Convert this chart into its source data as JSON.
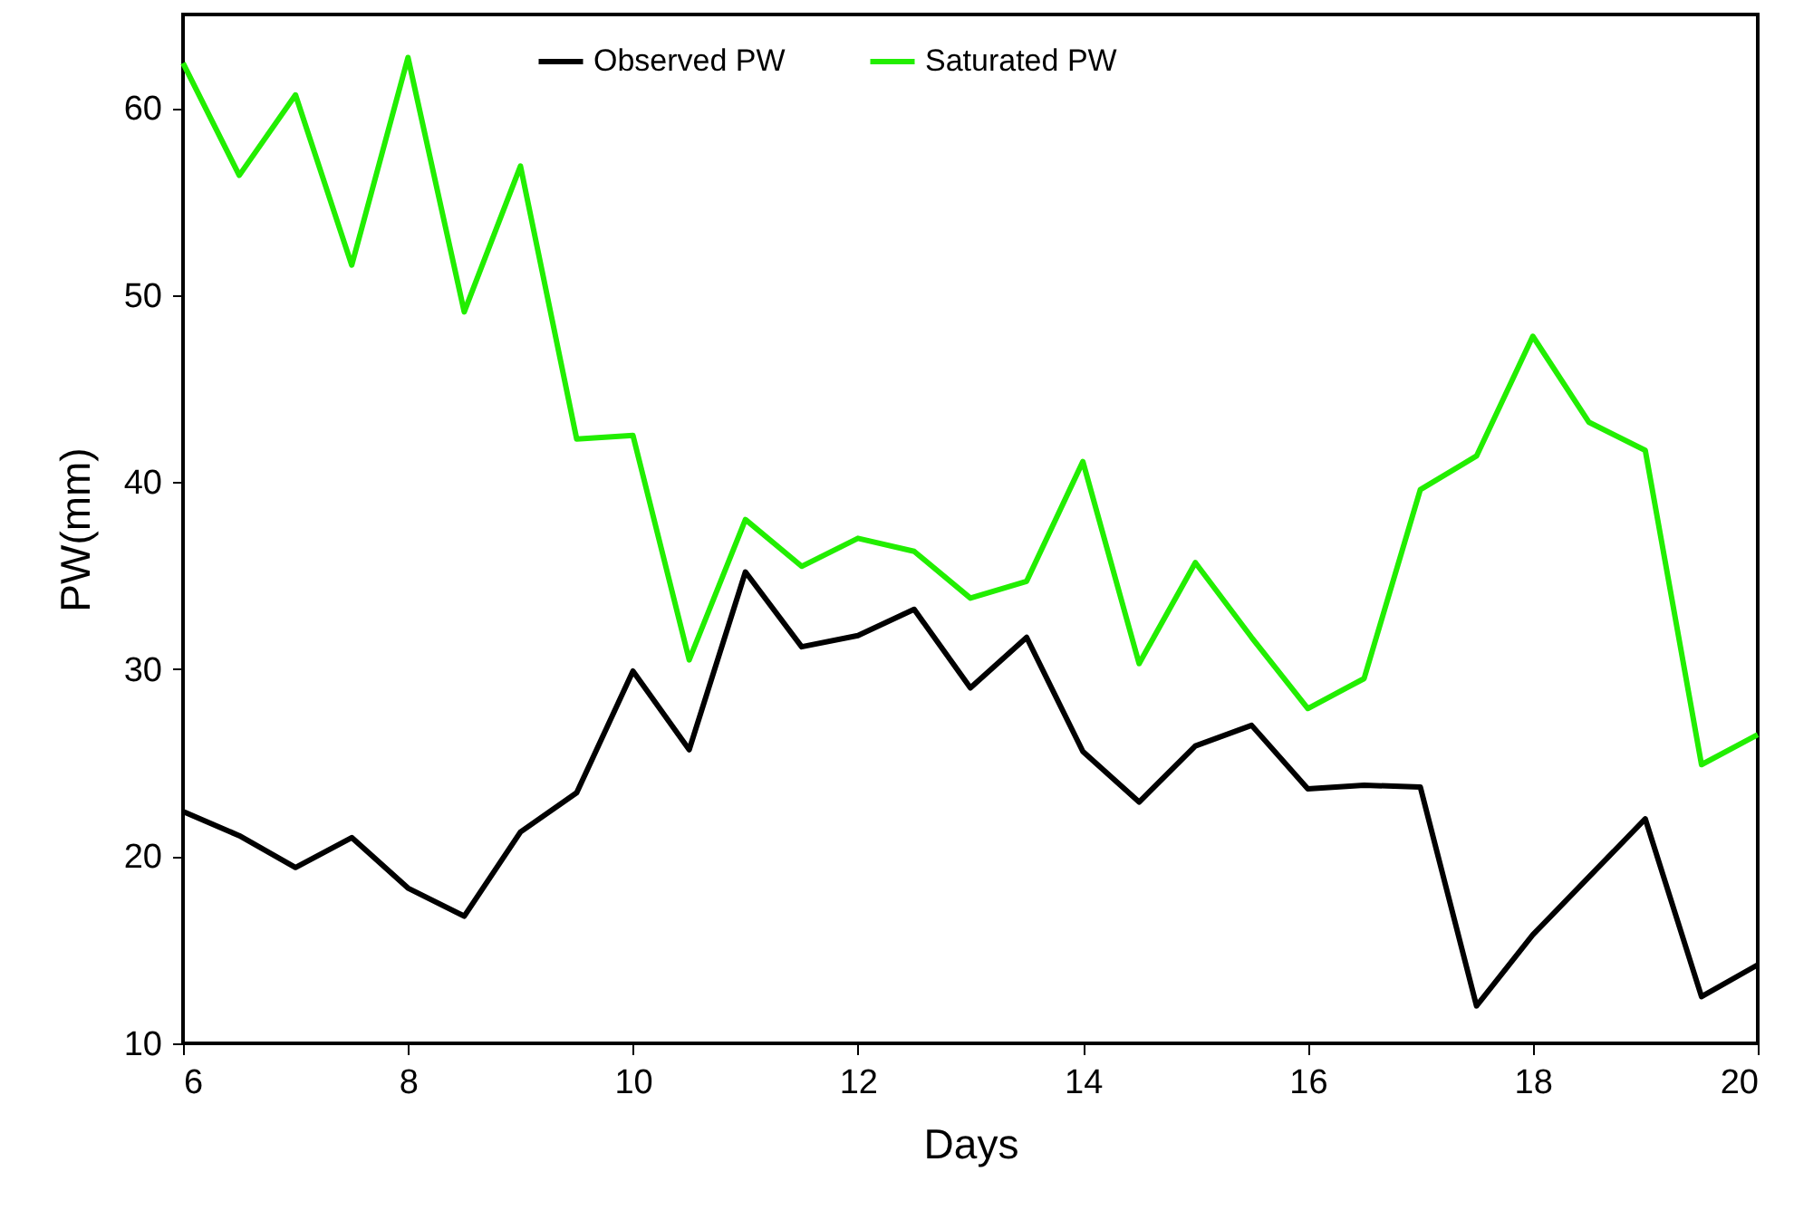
{
  "chart_data": {
    "type": "line",
    "xlabel": "Days",
    "ylabel": "PW(mm)",
    "x": [
      6,
      6.5,
      7,
      7.5,
      8,
      8.5,
      9,
      9.5,
      10,
      10.5,
      11,
      11.5,
      12,
      12.5,
      13,
      13.5,
      14,
      14.5,
      15,
      15.5,
      16,
      16.5,
      17,
      17.5,
      18,
      18.5,
      19,
      19.5,
      20
    ],
    "series": [
      {
        "name": "Observed PW",
        "color": "#000000",
        "values": [
          22.4,
          21.1,
          19.4,
          21.0,
          18.3,
          16.8,
          21.3,
          23.4,
          29.9,
          25.7,
          35.2,
          31.2,
          31.8,
          33.2,
          29.0,
          31.7,
          25.6,
          22.9,
          25.9,
          27.0,
          23.6,
          23.8,
          23.7,
          12.0,
          15.8,
          18.9,
          22.0,
          12.5,
          14.2
        ]
      },
      {
        "name": "Saturated PW",
        "color": "#22ee00",
        "values": [
          62.4,
          56.4,
          60.7,
          51.6,
          62.7,
          49.1,
          56.9,
          42.3,
          42.5,
          30.5,
          38.0,
          35.5,
          37.0,
          36.3,
          33.8,
          34.7,
          41.1,
          30.3,
          35.7,
          31.7,
          27.9,
          29.5,
          39.6,
          41.4,
          47.8,
          43.2,
          41.7,
          24.9,
          26.5
        ]
      }
    ],
    "xlim": [
      6,
      20
    ],
    "xticks": [
      6,
      8,
      10,
      12,
      14,
      16,
      18,
      20
    ],
    "ylim": [
      10,
      65
    ],
    "yticks": [
      10,
      20,
      30,
      40,
      50,
      60
    ],
    "grid": false,
    "legend": "top",
    "marker": "none",
    "line_style": "solid"
  }
}
